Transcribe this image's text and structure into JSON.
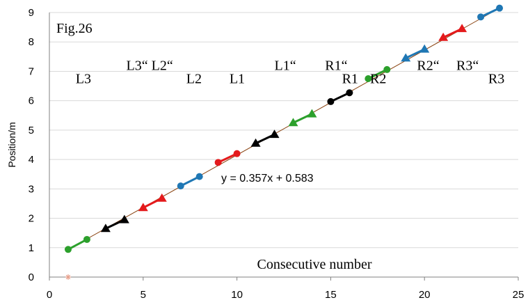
{
  "chart_data": {
    "type": "scatter",
    "annotation_title": "Fig.26",
    "xlabel": "Consecutive number",
    "ylabel": "Position/m",
    "xlim": [
      0,
      25
    ],
    "ylim": [
      0,
      9
    ],
    "xticks": [
      0,
      5,
      10,
      15,
      20,
      25
    ],
    "yticks": [
      0,
      1,
      2,
      3,
      4,
      5,
      6,
      7,
      8,
      9
    ],
    "grid": "horizontal",
    "trendline": {
      "slope": 0.357,
      "intercept": 0.583,
      "color": "#8B4513",
      "label": "y = 0.357x + 0.583"
    },
    "outlier": {
      "x": 1,
      "y": 0,
      "marker": "asterisk",
      "color": "#E6A08C"
    },
    "segments": [
      {
        "marker": "circle",
        "color": "#2CA02C",
        "points": [
          [
            1,
            0.94
          ],
          [
            2,
            1.28
          ]
        ]
      },
      {
        "marker": "triangle",
        "color": "#000000",
        "points": [
          [
            3,
            1.65
          ],
          [
            4,
            1.95
          ]
        ]
      },
      {
        "marker": "triangle",
        "color": "#E41A1C",
        "points": [
          [
            5,
            2.36
          ],
          [
            6,
            2.68
          ]
        ]
      },
      {
        "marker": "circle",
        "color": "#1F77B4",
        "points": [
          [
            7,
            3.1
          ],
          [
            8,
            3.42
          ]
        ]
      },
      {
        "marker": "circle",
        "color": "#E41A1C",
        "points": [
          [
            9,
            3.9
          ],
          [
            10,
            4.2
          ]
        ]
      },
      {
        "marker": "triangle",
        "color": "#000000",
        "points": [
          [
            11,
            4.55
          ],
          [
            12,
            4.85
          ]
        ]
      },
      {
        "marker": "triangle",
        "color": "#2CA02C",
        "points": [
          [
            13,
            5.25
          ],
          [
            14,
            5.55
          ]
        ]
      },
      {
        "marker": "circle",
        "color": "#000000",
        "points": [
          [
            15,
            5.97
          ],
          [
            16,
            6.27
          ]
        ]
      },
      {
        "marker": "circle",
        "color": "#2CA02C",
        "points": [
          [
            17,
            6.75
          ],
          [
            18,
            7.06
          ]
        ]
      },
      {
        "marker": "triangle",
        "color": "#1F77B4",
        "points": [
          [
            19,
            7.45
          ],
          [
            20,
            7.75
          ]
        ]
      },
      {
        "marker": "triangle",
        "color": "#E41A1C",
        "points": [
          [
            21,
            8.15
          ],
          [
            22,
            8.45
          ]
        ]
      },
      {
        "marker": "circle",
        "color": "#1F77B4",
        "points": [
          [
            23,
            8.85
          ],
          [
            24,
            9.15
          ]
        ]
      }
    ],
    "annotations": [
      {
        "text": "L3",
        "x": 1.4,
        "y": 6.6
      },
      {
        "text": "L3“ L2“",
        "x": 4.1,
        "y": 7.05
      },
      {
        "text": "L2",
        "x": 7.3,
        "y": 6.6
      },
      {
        "text": "L1",
        "x": 9.6,
        "y": 6.6
      },
      {
        "text": "L1“",
        "x": 12.0,
        "y": 7.05
      },
      {
        "text": "R1“",
        "x": 14.7,
        "y": 7.05
      },
      {
        "text": "R1",
        "x": 15.6,
        "y": 6.6
      },
      {
        "text": "R2",
        "x": 17.1,
        "y": 6.6
      },
      {
        "text": "R2“",
        "x": 19.6,
        "y": 7.05
      },
      {
        "text": "R3“",
        "x": 21.7,
        "y": 7.05
      },
      {
        "text": "R3",
        "x": 23.4,
        "y": 6.6
      }
    ]
  }
}
